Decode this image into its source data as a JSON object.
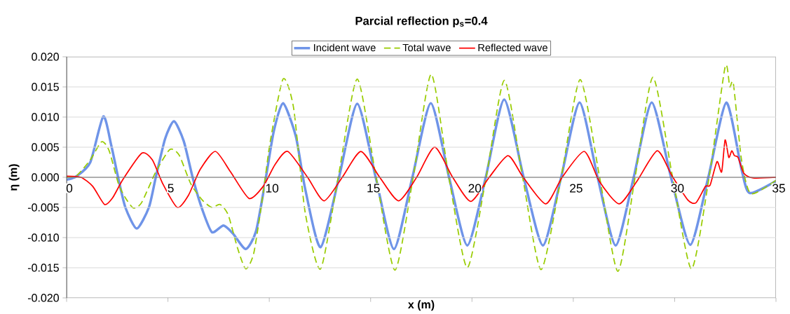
{
  "chart_data": {
    "type": "line",
    "title": "**Parcial reflection p$_{s}$=0.4**",
    "xlabel": "x (m)",
    "ylabel": "η (m)",
    "xlim": [
      0,
      35
    ],
    "xticks": [
      0,
      5,
      10,
      15,
      20,
      25,
      30,
      35
    ],
    "ylim": [
      -0.02,
      0.02
    ],
    "yticks": [
      {
        "value": -0.02,
        "label": "-0.020"
      },
      {
        "value": -0.015,
        "label": "-0.015"
      },
      {
        "value": -0.01,
        "label": "-0.010"
      },
      {
        "value": -0.005,
        "label": "-0.005"
      },
      {
        "value": 0,
        "label": "0.000"
      },
      {
        "value": 0.005,
        "label": "0.005"
      },
      {
        "value": 0.01,
        "label": "0.010"
      },
      {
        "value": 0.015,
        "label": "0.015"
      },
      {
        "value": 0.02,
        "label": "0.020"
      }
    ],
    "grid": "y",
    "legend": "top",
    "marker": "none",
    "series": [
      {
        "name": "Incident wave",
        "color": "#6f94e8",
        "line_style": "solid",
        "x": [
          0,
          0.5,
          1.17,
          1.81,
          2.21,
          2.56,
          2.9,
          3.46,
          4.06,
          4.4,
          4.86,
          5.3,
          5.78,
          6.24,
          6.7,
          7.17,
          7.74,
          8.2,
          8.84,
          9.35,
          9.82,
          10.22,
          10.68,
          11.31,
          11.77,
          12.53,
          13.44,
          14.34,
          15.25,
          16.15,
          17.06,
          17.97,
          18.87,
          19.77,
          20.68,
          21.59,
          22.55,
          23.5,
          24.4,
          25.31,
          26.2,
          27.09,
          27.98,
          28.87,
          29.82,
          30.77,
          31.66,
          32.55,
          33.3,
          33.7,
          35
        ],
        "values": [
          -0.0004,
          0.0002,
          0.0025,
          0.0101,
          0.0052,
          -0.0003,
          -0.005,
          -0.0085,
          -0.005,
          0,
          0.0064,
          0.0093,
          0.006,
          -0.0003,
          -0.0054,
          -0.0091,
          -0.008,
          -0.0093,
          -0.0119,
          -0.0089,
          -0.0003,
          0.0076,
          0.0123,
          0.0068,
          -0.0019,
          -0.0116,
          0,
          0.0122,
          0,
          -0.0119,
          0,
          0.0123,
          0,
          -0.0113,
          0,
          0.0129,
          0,
          -0.0113,
          0,
          0.0124,
          0,
          -0.0113,
          0,
          0.0124,
          0,
          -0.0112,
          0,
          0.0124,
          0.0013,
          -0.0026,
          -0.0006
        ]
      },
      {
        "name": "Total wave",
        "color": "#99cc00",
        "line_style": "dashed",
        "x": [
          0,
          0.5,
          1.17,
          1.73,
          2.1,
          2.56,
          2.9,
          3.3,
          3.7,
          4.4,
          5.09,
          5.55,
          6.13,
          6.7,
          7.17,
          7.57,
          7.97,
          8.43,
          8.84,
          9.24,
          9.7,
          10.05,
          10.68,
          11.2,
          11.77,
          12.53,
          13.4,
          14.34,
          15.27,
          16.2,
          17.1,
          17.99,
          18.86,
          19.77,
          20.7,
          21.6,
          22.5,
          23.41,
          24.4,
          25.34,
          26.3,
          27.2,
          28.05,
          28.93,
          29.9,
          30.83,
          31.7,
          32.49,
          32.72,
          32.9,
          33.3,
          33.76,
          35
        ],
        "values": [
          0,
          0.0003,
          0.0029,
          0.0059,
          0.0044,
          -0.0011,
          -0.0034,
          -0.0051,
          -0.0042,
          0.0009,
          0.0046,
          0.0037,
          -0.0011,
          -0.0038,
          -0.005,
          -0.0045,
          -0.0062,
          -0.0117,
          -0.0152,
          -0.0125,
          -0.0026,
          0.006,
          0.0163,
          0.0115,
          -0.0058,
          -0.0152,
          0,
          0.0163,
          0,
          -0.0154,
          0,
          0.0171,
          0,
          -0.015,
          0,
          0.0161,
          0,
          -0.0153,
          0,
          0.0162,
          0,
          -0.0156,
          0,
          0.0166,
          0,
          -0.0152,
          0,
          0.0183,
          0.015,
          0.0155,
          0.0029,
          -0.0027,
          -0.0005
        ]
      },
      {
        "name": "Reflected wave",
        "color": "#ff0000",
        "line_style": "solid",
        "x": [
          0,
          0.71,
          1.29,
          1.87,
          2.27,
          2.79,
          3.71,
          4.23,
          4.75,
          5.46,
          6.01,
          6.59,
          7.34,
          8.09,
          9.0,
          9.7,
          10.28,
          10.91,
          11.89,
          12.7,
          13.6,
          14.52,
          15.45,
          16.38,
          17.27,
          18.16,
          19.05,
          19.94,
          20.85,
          21.78,
          22.53,
          23.64,
          24.45,
          25.54,
          26.29,
          27.26,
          28.13,
          29.14,
          29.86,
          30.66,
          31.06,
          31.52,
          31.75,
          32.09,
          32.32,
          32.49,
          32.67,
          32.82,
          32.95,
          33.13,
          33.41,
          33.87,
          35
        ],
        "values": [
          0.0002,
          0,
          -0.0015,
          -0.0045,
          -0.0034,
          -0.0003,
          0.004,
          0.0029,
          -0.0011,
          -0.005,
          -0.003,
          0.0013,
          0.0043,
          0.0009,
          -0.0035,
          -0.0015,
          0.0021,
          0.0043,
          0,
          -0.0039,
          0,
          0.0043,
          0,
          -0.0039,
          0,
          0.005,
          0,
          -0.004,
          0,
          0.0036,
          0,
          -0.0044,
          0,
          0.0043,
          -0.0007,
          -0.0044,
          -0.0007,
          0.0044,
          0.0003,
          -0.0038,
          -0.0042,
          -0.0015,
          -0.0013,
          0.0026,
          0.0009,
          0.0062,
          0.0033,
          0.0044,
          0.0036,
          0.0033,
          0.0007,
          -0.0001,
          0
        ]
      }
    ]
  }
}
